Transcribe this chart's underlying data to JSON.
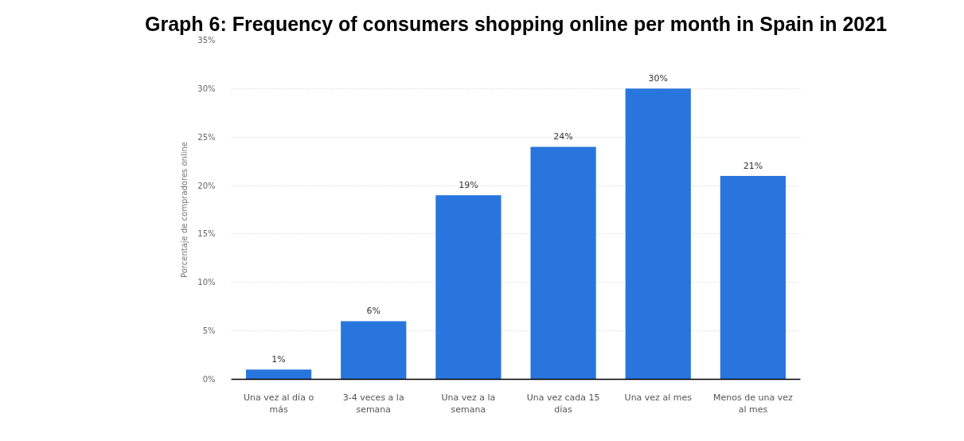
{
  "chart_data": {
    "type": "bar",
    "title": "Graph 6: Frequency of consumers shopping online per month in Spain in 2021",
    "ylabel": "Porcentaje de compradores online",
    "categories": [
      "Una vez al día o más",
      "3-4 veces a la semana",
      "Una vez a la semana",
      "Una vez cada 15 días",
      "Una vez al mes",
      "Menos de una vez al mes"
    ],
    "values": [
      1,
      6,
      19,
      24,
      30,
      21
    ],
    "value_labels": [
      "1%",
      "6%",
      "19%",
      "24%",
      "30%",
      "21%"
    ],
    "color": "#2876dd",
    "ylim": [
      0,
      35
    ],
    "yticks": [
      {
        "value": 0,
        "label": "0%"
      },
      {
        "value": 5,
        "label": "5%"
      },
      {
        "value": 10,
        "label": "10%"
      },
      {
        "value": 15,
        "label": "15%"
      },
      {
        "value": 20,
        "label": "20%"
      },
      {
        "value": 25,
        "label": "25%"
      },
      {
        "value": 30,
        "label": "30%"
      },
      {
        "value": 35,
        "label": "35%"
      }
    ],
    "grid": "y"
  }
}
